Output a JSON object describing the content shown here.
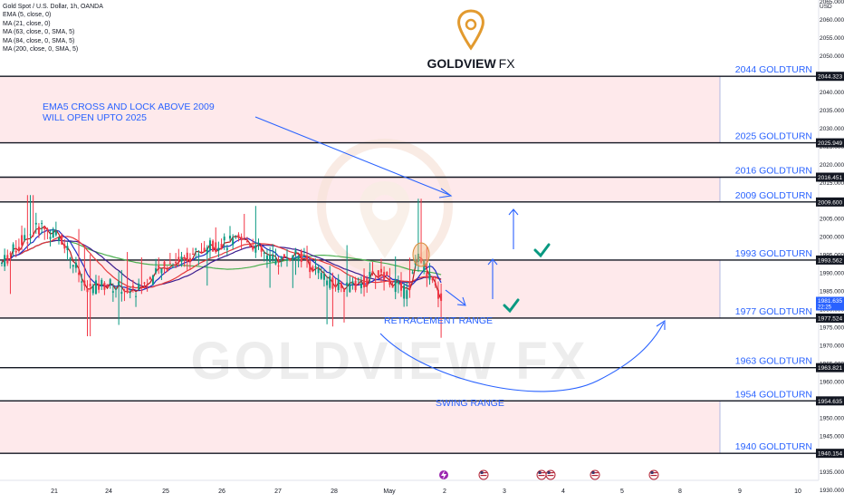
{
  "header": {
    "symbol_line": "Gold Spot / U.S. Dollar, 1h, OANDA",
    "indicators": [
      "EMA (5, close, 0)",
      "MA (21, close, 0)",
      "MA (63, close, 0, SMA, 5)",
      "MA (84, close, 0, SMA, 5)",
      "MA (200, close, 0, SMA, 5)"
    ]
  },
  "brand": {
    "name_main": "GOLDVIEW",
    "name_suffix": "FX",
    "watermark": "GOLDVIEW FX",
    "logo_color": "#e29a2f"
  },
  "colors": {
    "zone_fill": "#fde2e4",
    "level_line": "#131722",
    "annotation_blue": "#2962ff",
    "check_green": "#089981",
    "candle_up": "#089981",
    "candle_down": "#f23645",
    "ema5": "#b71c1c",
    "ma21": "#1e2ec4",
    "ma63": "#e5393a",
    "ma84": "#3b1d8f",
    "ma200": "#4caf50"
  },
  "chart_data": {
    "type": "candlestick",
    "currency_label": "USD",
    "ylim": [
      1926,
      2070
    ],
    "y_ticks": [
      1930,
      1935,
      1940,
      1945,
      1950,
      1955,
      1960,
      1965,
      1970,
      1975,
      1980,
      1985,
      1990,
      1995,
      2000,
      2005,
      2010,
      2015,
      2020,
      2025,
      2030,
      2035,
      2040,
      2045,
      2050,
      2055,
      2060,
      2065
    ],
    "x_ticks": [
      "21",
      "24",
      "25",
      "26",
      "27",
      "28",
      "May",
      "2",
      "3",
      "4",
      "5",
      "8",
      "9",
      "10"
    ],
    "price_levels": [
      {
        "price_label": "2044.323",
        "label": "2044 GOLDTURN",
        "value": 2044.323
      },
      {
        "price_label": "2025.949",
        "label": "2025 GOLDTURN",
        "value": 2025.949
      },
      {
        "price_label": "2016.451",
        "label": "2016 GOLDTURN",
        "value": 2016.451
      },
      {
        "price_label": "2009.600",
        "label": "2009 GOLDTURN",
        "value": 2009.6
      },
      {
        "price_label": "1993.562",
        "label": "1993 GOLDTURN",
        "value": 1993.562
      },
      {
        "price_label": "1977.524",
        "label": "1977 GOLDTURN",
        "value": 1977.524
      },
      {
        "price_label": "1963.821",
        "label": "1963 GOLDTURN",
        "value": 1963.821
      },
      {
        "price_label": "1954.635",
        "label": "1954 GOLDTURN",
        "value": 1954.635
      },
      {
        "price_label": "1940.154",
        "label": "1940 GOLDTURN",
        "value": 1940.154
      }
    ],
    "current_price": {
      "price_label": "1981.635",
      "countdown": "22:25",
      "value": 1981.635
    },
    "zones": [
      [
        2025.949,
        2044.323
      ],
      [
        2009.6,
        2016.451
      ],
      [
        1977.524,
        1993.562
      ],
      [
        1940.154,
        1954.635
      ]
    ],
    "annotations": {
      "ema_note_line1": "EMA5 CROSS AND LOCK ABOVE 2009",
      "ema_note_line2": "WILL OPEN UPTO 2025",
      "retracement": "RETRACEMENT RANGE",
      "swing": "SWING RANGE"
    }
  }
}
